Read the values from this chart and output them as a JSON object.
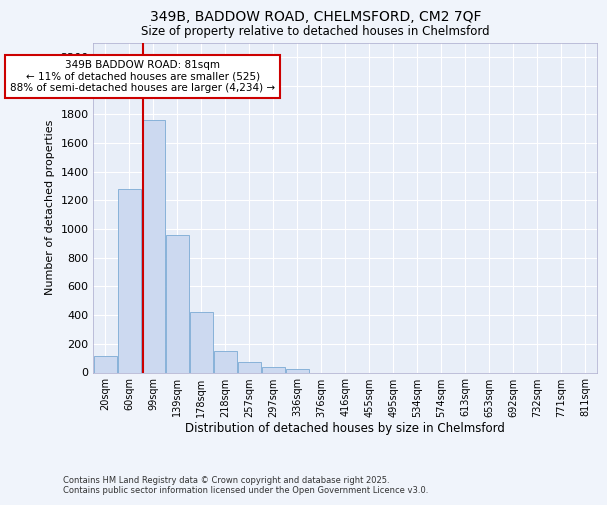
{
  "title_line1": "349B, BADDOW ROAD, CHELMSFORD, CM2 7QF",
  "title_line2": "Size of property relative to detached houses in Chelmsford",
  "xlabel": "Distribution of detached houses by size in Chelmsford",
  "ylabel": "Number of detached properties",
  "bar_color": "#ccd9f0",
  "bar_edge_color": "#7baad4",
  "annotation_box_color": "#cc0000",
  "annotation_line_color": "#cc0000",
  "property_line_x": 2,
  "annotation_text": "349B BADDOW ROAD: 81sqm\n← 11% of detached houses are smaller (525)\n88% of semi-detached houses are larger (4,234) →",
  "footer_line1": "Contains HM Land Registry data © Crown copyright and database right 2025.",
  "footer_line2": "Contains public sector information licensed under the Open Government Licence v3.0.",
  "categories": [
    "20sqm",
    "60sqm",
    "99sqm",
    "139sqm",
    "178sqm",
    "218sqm",
    "257sqm",
    "297sqm",
    "336sqm",
    "376sqm",
    "416sqm",
    "455sqm",
    "495sqm",
    "534sqm",
    "574sqm",
    "613sqm",
    "653sqm",
    "692sqm",
    "732sqm",
    "771sqm",
    "811sqm"
  ],
  "bar_heights": [
    115,
    1280,
    1760,
    960,
    425,
    150,
    75,
    40,
    25,
    0,
    0,
    0,
    0,
    0,
    0,
    0,
    0,
    0,
    0,
    0,
    0
  ],
  "ylim": [
    0,
    2300
  ],
  "yticks": [
    0,
    200,
    400,
    600,
    800,
    1000,
    1200,
    1400,
    1600,
    1800,
    2000,
    2200
  ],
  "background_color": "#f0f4fb",
  "plot_bg_color": "#e8eef8",
  "grid_color": "#ffffff",
  "spine_color": "#aaaacc"
}
